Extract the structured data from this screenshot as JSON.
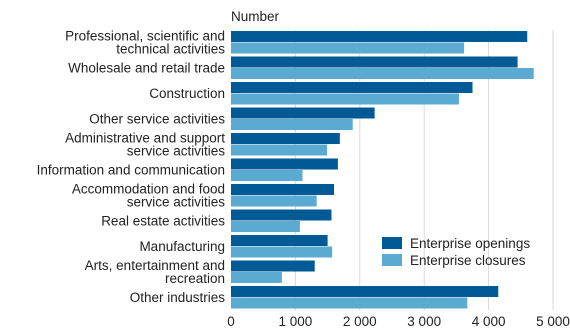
{
  "chart_data": {
    "type": "bar",
    "orientation": "horizontal",
    "ylabel": "Number",
    "xlabel": "",
    "xlim": [
      0,
      5000
    ],
    "x_ticks": [
      0,
      1000,
      2000,
      3000,
      4000,
      5000
    ],
    "x_tick_labels": [
      "0",
      "1 000",
      "2 000",
      "3 000",
      "4 000",
      "5 000"
    ],
    "grid": "vertical",
    "legend_position": "bottom-right",
    "categories": [
      [
        "Professional, scientific and",
        "technical activities"
      ],
      [
        "Wholesale and retail trade"
      ],
      [
        "Construction"
      ],
      [
        "Other service activities"
      ],
      [
        "Administrative and support",
        "service activities"
      ],
      [
        "Information and communication"
      ],
      [
        "Accommodation and food",
        "service activities"
      ],
      [
        "Real estate activities"
      ],
      [
        "Manufacturing"
      ],
      [
        "Arts, entertainment and",
        "recreation"
      ],
      [
        "Other industries"
      ]
    ],
    "series": [
      {
        "name": "Enterprise openings",
        "color": "#005a96",
        "values": [
          4600,
          4450,
          3750,
          2230,
          1690,
          1660,
          1600,
          1560,
          1500,
          1300,
          4150
        ]
      },
      {
        "name": "Enterprise closures",
        "color": "#5aaad2",
        "values": [
          3620,
          4700,
          3540,
          1890,
          1490,
          1110,
          1330,
          1070,
          1570,
          790,
          3670
        ]
      }
    ]
  }
}
